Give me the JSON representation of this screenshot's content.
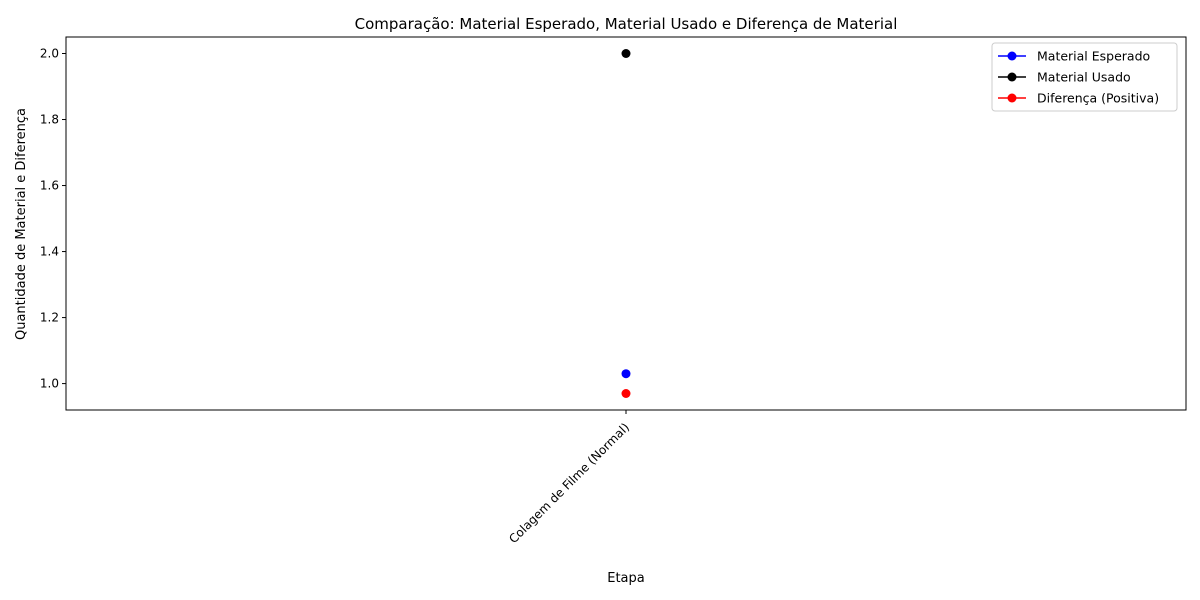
{
  "chart_data": {
    "type": "line",
    "title": "Comparação: Material Esperado, Material Usado e Diferença de Material",
    "xlabel": "Etapa",
    "ylabel": "Quantidade de Material e Diferença",
    "categories": [
      "Colagem de Filme (Normal)"
    ],
    "ylim": [
      0.92,
      2.05
    ],
    "yticks": [
      1.0,
      1.2,
      1.4,
      1.6,
      1.8,
      2.0
    ],
    "ytick_labels": [
      "1.0",
      "1.2",
      "1.4",
      "1.6",
      "1.8",
      "2.0"
    ],
    "grid": false,
    "legend_position": "top-right",
    "series": [
      {
        "name": "Material Esperado",
        "color": "#0000ff",
        "marker": "circle",
        "values": [
          1.03
        ]
      },
      {
        "name": "Material Usado",
        "color": "#000000",
        "marker": "circle",
        "values": [
          2.0
        ]
      },
      {
        "name": "Diferença (Positiva)",
        "color": "#ff0000",
        "marker": "circle",
        "values": [
          0.97
        ]
      }
    ]
  }
}
